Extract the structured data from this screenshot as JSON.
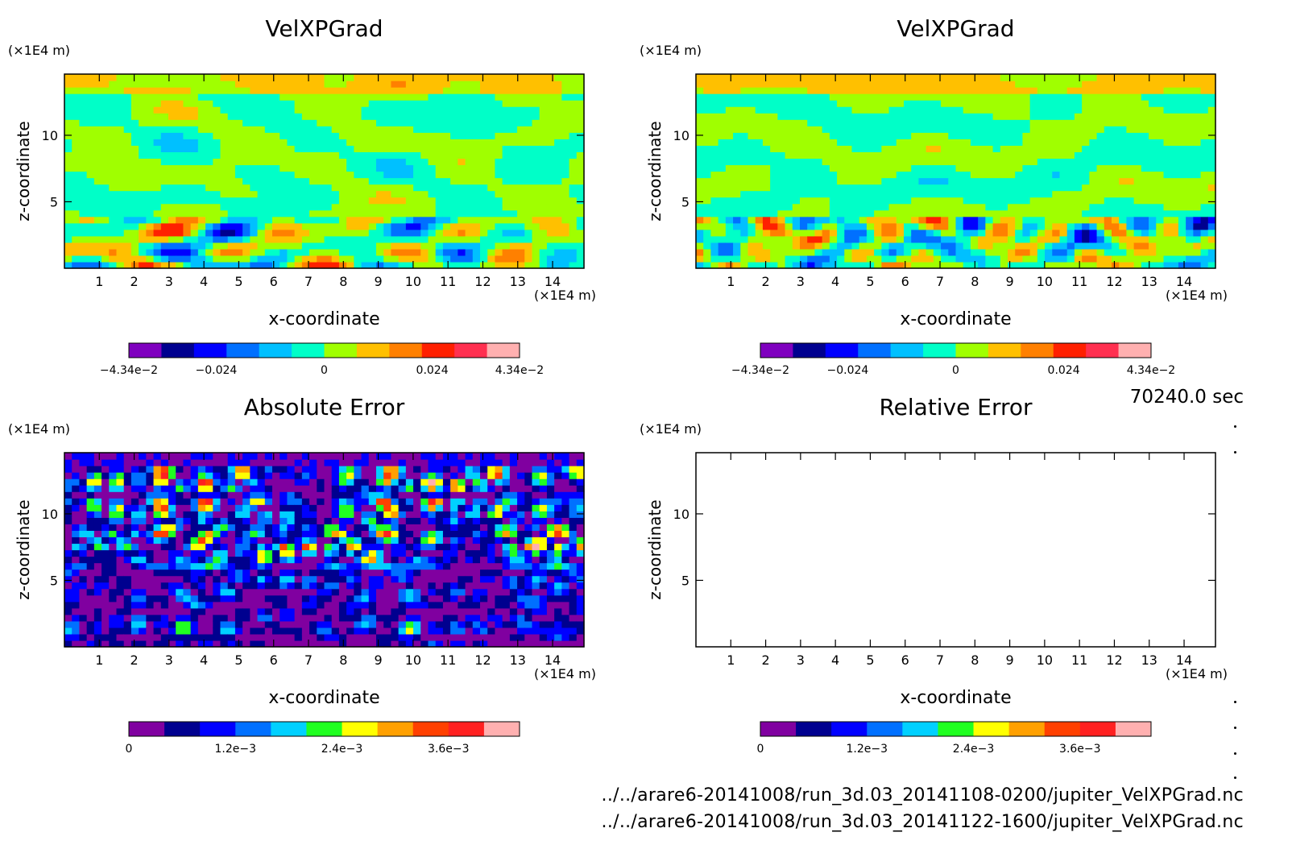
{
  "figure": {
    "time_label": "70240.0 sec",
    "files": [
      "../../arare6-20141008/run_3d.03_20141108-0200/jupiter_VelXPGrad.nc",
      "../../arare6-20141008/run_3d.03_20141122-1600/jupiter_VelXPGrad.nc"
    ]
  },
  "chart_data": [
    {
      "type": "heatmap",
      "title": "VelXPGrad",
      "xlabel": "x-coordinate",
      "ylabel": "z-coordinate",
      "x_unit": "(×1E4 m)",
      "y_unit": "(×1E4 m)",
      "xlim": [
        0,
        14.9
      ],
      "ylim": [
        0,
        14.6
      ],
      "x_ticks": [
        1,
        2,
        3,
        4,
        5,
        6,
        7,
        8,
        9,
        10,
        11,
        12,
        13,
        14
      ],
      "y_ticks": [
        5,
        10
      ],
      "colorbar": {
        "colors": [
          "#7f00bf",
          "#00008f",
          "#0000ff",
          "#0070ff",
          "#00c0ff",
          "#00ffc8",
          "#a0ff00",
          "#ffc000",
          "#ff8000",
          "#ff2000",
          "#ff3050",
          "#ffb0b0"
        ],
        "tick_labels": [
          "−4.34e−2",
          "−0.024",
          "0",
          "0.024",
          "4.34e−2"
        ],
        "tick_values": [
          -0.0434,
          -0.024,
          0,
          0.024,
          0.0434
        ],
        "range": [
          -0.0434,
          0.0434
        ]
      }
    },
    {
      "type": "heatmap",
      "title": "VelXPGrad",
      "xlabel": "x-coordinate",
      "ylabel": "z-coordinate",
      "x_unit": "(×1E4 m)",
      "y_unit": "(×1E4 m)",
      "xlim": [
        0,
        14.9
      ],
      "ylim": [
        0,
        14.6
      ],
      "x_ticks": [
        1,
        2,
        3,
        4,
        5,
        6,
        7,
        8,
        9,
        10,
        11,
        12,
        13,
        14
      ],
      "y_ticks": [
        5,
        10
      ],
      "colorbar": {
        "colors": [
          "#7f00bf",
          "#00008f",
          "#0000ff",
          "#0070ff",
          "#00c0ff",
          "#00ffc8",
          "#a0ff00",
          "#ffc000",
          "#ff8000",
          "#ff2000",
          "#ff3050",
          "#ffb0b0"
        ],
        "tick_labels": [
          "−4.34e−2",
          "−0.024",
          "0",
          "0.024",
          "4.34e−2"
        ],
        "tick_values": [
          -0.0434,
          -0.024,
          0,
          0.024,
          0.0434
        ],
        "range": [
          -0.0434,
          0.0434
        ]
      }
    },
    {
      "type": "heatmap",
      "title": "Absolute Error",
      "xlabel": "x-coordinate",
      "ylabel": "z-coordinate",
      "x_unit": "(×1E4 m)",
      "y_unit": "(×1E4 m)",
      "xlim": [
        0,
        14.9
      ],
      "ylim": [
        0,
        14.6
      ],
      "x_ticks": [
        1,
        2,
        3,
        4,
        5,
        6,
        7,
        8,
        9,
        10,
        11,
        12,
        13,
        14
      ],
      "y_ticks": [
        5,
        10
      ],
      "colorbar": {
        "colors": [
          "#8000a0",
          "#00008f",
          "#0000ff",
          "#0070ff",
          "#00d0ff",
          "#20ff20",
          "#ffff00",
          "#ffa000",
          "#ff4000",
          "#ff2020",
          "#ffb0b0"
        ],
        "tick_labels": [
          "0",
          "1.2e−3",
          "2.4e−3",
          "3.6e−3"
        ],
        "tick_values": [
          0,
          0.0012,
          0.0024,
          0.0036
        ],
        "range": [
          0,
          0.0044
        ]
      }
    },
    {
      "type": "heatmap",
      "title": "Relative Error",
      "xlabel": "x-coordinate",
      "ylabel": "z-coordinate",
      "x_unit": "(×1E4 m)",
      "y_unit": "(×1E4 m)",
      "xlim": [
        0,
        14.9
      ],
      "ylim": [
        0,
        14.6
      ],
      "x_ticks": [
        1,
        2,
        3,
        4,
        5,
        6,
        7,
        8,
        9,
        10,
        11,
        12,
        13,
        14
      ],
      "y_ticks": [
        5,
        10
      ],
      "colorbar": {
        "colors": [
          "#8000a0",
          "#00008f",
          "#0000ff",
          "#0070ff",
          "#00d0ff",
          "#20ff20",
          "#ffff00",
          "#ffa000",
          "#ff4000",
          "#ff2020",
          "#ffb0b0"
        ],
        "tick_labels": [
          "0",
          "1.2e−3",
          "2.4e−3",
          "3.6e−3"
        ],
        "tick_values": [
          0,
          0.0012,
          0.0024,
          0.0036
        ],
        "range": [
          0,
          0.0044
        ]
      }
    }
  ]
}
